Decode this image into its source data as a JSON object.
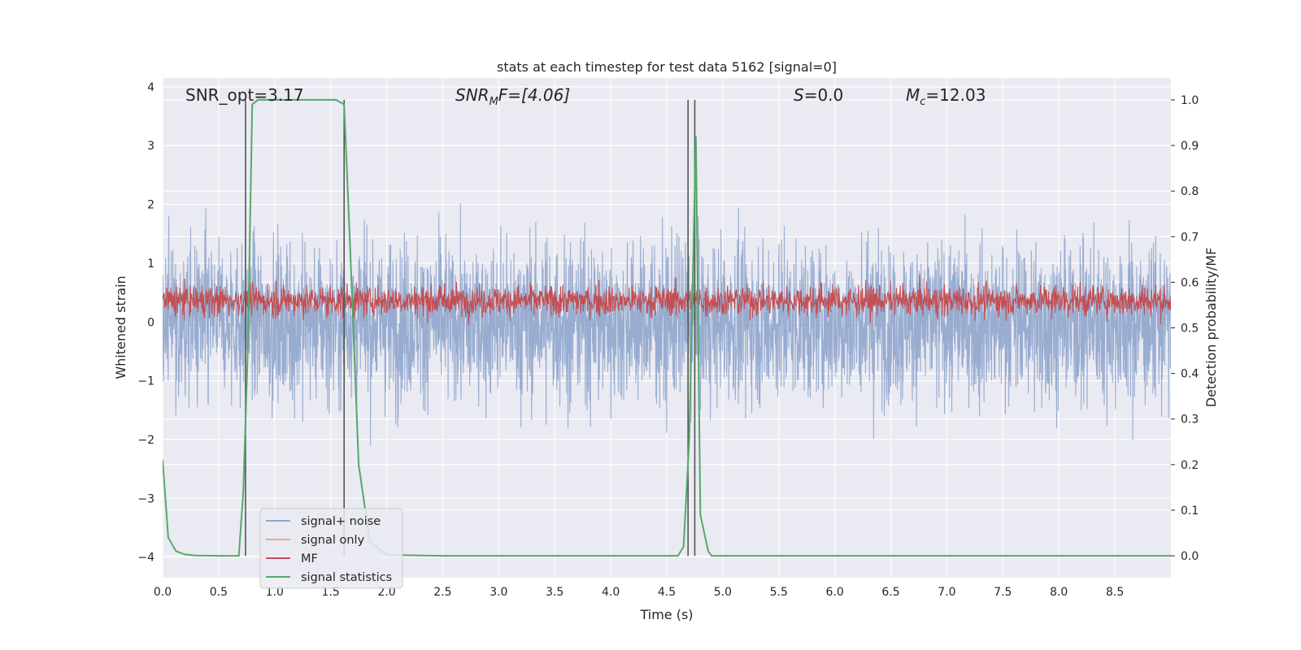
{
  "chart_data": {
    "type": "line",
    "title": "stats at each timestep for test data 5162 [signal=0]",
    "xlabel": "Time (s)",
    "ylabel": "Whitened strain",
    "ylabel_right": "Detection probability/MF",
    "xlim": [
      0,
      9.0
    ],
    "ylim": [
      -4.35,
      4.15
    ],
    "ylim_right": [
      -0.048,
      1.048
    ],
    "x_ticks": [
      "0.0",
      "0.5",
      "1.0",
      "1.5",
      "2.0",
      "2.5",
      "3.0",
      "3.5",
      "4.0",
      "4.5",
      "5.0",
      "5.5",
      "6.0",
      "6.5",
      "7.0",
      "7.5",
      "8.0",
      "8.5"
    ],
    "y_ticks": [
      "4",
      "3",
      "2",
      "1",
      "0",
      "−1",
      "−2",
      "−3",
      "−4"
    ],
    "y_ticks_right": [
      "1.0",
      "0.9",
      "0.8",
      "0.7",
      "0.6",
      "0.5",
      "0.4",
      "0.3",
      "0.2",
      "0.1",
      "0.0"
    ],
    "grid": true,
    "legend_position": "lower-left",
    "annotations": [
      {
        "text": "SNR_opt=3.17"
      },
      {
        "main": "SNR",
        "sub": "M",
        "rest": "F=[4.06]"
      },
      {
        "main": "S",
        "rest": "=0.0"
      },
      {
        "main": "M",
        "sub": "c",
        "rest": "=12.03"
      }
    ],
    "series": [
      {
        "name": "signal+ noise",
        "color": "#8fa5cc",
        "axis": "left",
        "kind": "noise",
        "band": [
          -1.7,
          1.5
        ],
        "peak_max": 3.7,
        "peak_min": -3.3
      },
      {
        "name": "signal only",
        "color": "#e8a98a",
        "axis": "left",
        "kind": "flat",
        "values": []
      },
      {
        "name": "MF",
        "color": "#c44e52",
        "axis": "right",
        "kind": "noise",
        "band": [
          0.52,
          0.6
        ],
        "peak_max": 0.63,
        "peak_min": 0.5
      },
      {
        "name": "signal statistics",
        "color": "#55a868",
        "axis": "right",
        "kind": "line",
        "x": [
          0.0,
          0.05,
          0.12,
          0.2,
          0.3,
          0.5,
          0.68,
          0.72,
          0.76,
          0.8,
          0.85,
          1.0,
          1.3,
          1.55,
          1.62,
          1.67,
          1.75,
          1.85,
          2.0,
          2.5,
          4.6,
          4.65,
          4.7,
          4.76,
          4.8,
          4.87,
          4.9,
          5.5,
          9.0
        ],
        "y": [
          0.21,
          0.04,
          0.01,
          0.003,
          0.0005,
          0.0,
          0.0,
          0.14,
          0.45,
          0.99,
          1.0,
          1.0,
          1.0,
          1.0,
          0.99,
          0.7,
          0.2,
          0.03,
          0.002,
          0.0,
          0.0,
          0.02,
          0.25,
          0.92,
          0.09,
          0.01,
          0.0,
          0.0,
          0.0
        ]
      }
    ],
    "vertical_markers": [
      0.74,
      1.62,
      4.69,
      4.75
    ]
  }
}
